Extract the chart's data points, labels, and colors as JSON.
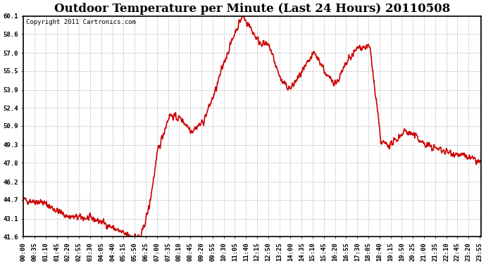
{
  "title": "Outdoor Temperature per Minute (Last 24 Hours) 20110508",
  "copyright": "Copyright 2011 Cartronics.com",
  "line_color": "#cc0000",
  "background_color": "#ffffff",
  "plot_bg_color": "#ffffff",
  "grid_color": "#aaaaaa",
  "y_ticks": [
    41.6,
    43.1,
    44.7,
    46.2,
    47.8,
    49.3,
    50.9,
    52.4,
    53.9,
    55.5,
    57.0,
    58.6,
    60.1
  ],
  "y_min": 41.6,
  "y_max": 60.1,
  "x_tick_labels": [
    "00:00",
    "00:35",
    "01:10",
    "01:45",
    "02:20",
    "02:55",
    "03:30",
    "04:05",
    "04:40",
    "05:15",
    "05:50",
    "06:25",
    "07:00",
    "07:35",
    "08:10",
    "08:45",
    "09:20",
    "09:55",
    "10:30",
    "11:05",
    "11:40",
    "12:15",
    "12:50",
    "13:25",
    "14:00",
    "14:35",
    "15:10",
    "15:45",
    "16:20",
    "16:55",
    "17:30",
    "18:05",
    "18:40",
    "19:15",
    "19:50",
    "20:25",
    "21:00",
    "21:35",
    "22:10",
    "22:45",
    "23:20",
    "23:55"
  ],
  "title_fontsize": 12,
  "copyright_fontsize": 6.5,
  "tick_fontsize": 6.5,
  "line_width": 1.2
}
